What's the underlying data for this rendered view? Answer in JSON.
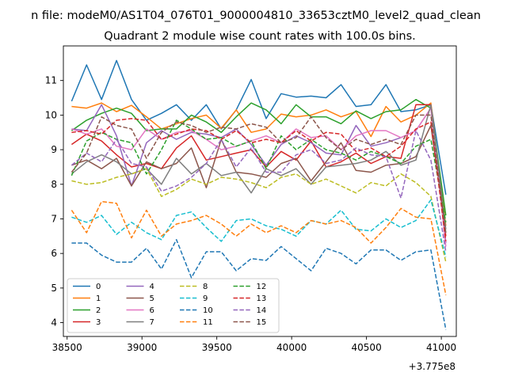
{
  "chart_data": {
    "type": "line",
    "suptitle": "n file: modeM0/AS1T04_076T01_9000004810_33653cztM0_level2_quad_clean",
    "title": "Quadrant 2 module wise count rates with 100.0s bins.",
    "xlabel": "",
    "ylabel": "",
    "x_offset_label": "+3.775e8",
    "xlim": [
      38475,
      41100
    ],
    "ylim": [
      3.6,
      12.0
    ],
    "x_ticks": [
      38500,
      39000,
      39500,
      40000,
      40500,
      41000
    ],
    "y_ticks": [
      4,
      5,
      6,
      7,
      8,
      9,
      10,
      11
    ],
    "x": [
      38530,
      38630,
      38730,
      38830,
      38930,
      39030,
      39130,
      39230,
      39330,
      39430,
      39530,
      39630,
      39730,
      39830,
      39930,
      40030,
      40130,
      40230,
      40330,
      40430,
      40530,
      40630,
      40730,
      40830,
      40930,
      41030
    ],
    "legend": {
      "location": "lower left",
      "columns": 4
    },
    "series": [
      {
        "name": "0",
        "color": "#1f77b4",
        "dash": "solid",
        "values": [
          10.4,
          11.45,
          10.45,
          11.58,
          10.45,
          9.85,
          10.05,
          10.3,
          9.85,
          10.3,
          9.6,
          10.15,
          11.03,
          9.9,
          10.62,
          10.52,
          10.55,
          10.5,
          10.88,
          10.25,
          10.3,
          10.88,
          10.1,
          10.15,
          10.3,
          7.7
        ]
      },
      {
        "name": "1",
        "color": "#ff7f0e",
        "dash": "solid",
        "values": [
          10.25,
          10.2,
          10.35,
          10.1,
          10.28,
          9.95,
          9.6,
          9.75,
          9.9,
          10.0,
          9.62,
          10.15,
          9.5,
          9.6,
          10.03,
          9.95,
          10.0,
          10.15,
          9.95,
          10.1,
          9.38,
          10.25,
          9.8,
          10.0,
          10.35,
          6.8
        ]
      },
      {
        "name": "2",
        "color": "#2ca02c",
        "dash": "solid",
        "values": [
          9.55,
          9.85,
          10.05,
          10.2,
          10.05,
          9.55,
          9.6,
          9.6,
          10.0,
          9.8,
          9.5,
          9.95,
          10.35,
          10.15,
          9.75,
          10.3,
          9.95,
          9.95,
          9.75,
          10.12,
          9.9,
          10.1,
          10.15,
          10.45,
          10.2,
          7.1
        ]
      },
      {
        "name": "3",
        "color": "#d62728",
        "dash": "solid",
        "values": [
          9.15,
          9.45,
          9.25,
          8.85,
          8.5,
          8.6,
          8.45,
          9.05,
          9.4,
          8.7,
          8.8,
          8.9,
          9.0,
          8.5,
          8.95,
          8.7,
          9.25,
          8.5,
          8.65,
          8.9,
          8.6,
          8.8,
          8.75,
          10.3,
          10.3,
          6.5
        ]
      },
      {
        "name": "4",
        "color": "#9467bd",
        "dash": "solid",
        "values": [
          9.6,
          9.55,
          10.3,
          9.4,
          7.95,
          9.2,
          9.55,
          9.3,
          9.5,
          9.45,
          9.35,
          9.6,
          9.15,
          8.55,
          9.15,
          9.4,
          9.2,
          8.9,
          8.85,
          9.7,
          9.1,
          9.2,
          9.35,
          9.55,
          10.2,
          6.3
        ]
      },
      {
        "name": "5",
        "color": "#8c564b",
        "dash": "solid",
        "values": [
          8.55,
          8.7,
          8.45,
          8.75,
          7.95,
          8.65,
          8.45,
          8.6,
          9.05,
          7.9,
          9.3,
          8.35,
          8.3,
          8.2,
          8.6,
          8.75,
          8.1,
          8.65,
          9.2,
          8.4,
          8.35,
          8.55,
          8.6,
          8.8,
          9.7,
          6.6
        ]
      },
      {
        "name": "6",
        "color": "#e377c2",
        "dash": "solid",
        "values": [
          9.6,
          9.45,
          9.6,
          9.1,
          9.0,
          9.6,
          9.3,
          9.5,
          9.55,
          9.3,
          9.0,
          9.1,
          9.25,
          9.4,
          9.2,
          9.6,
          9.35,
          9.4,
          9.0,
          9.4,
          9.55,
          9.55,
          9.35,
          9.55,
          10.2,
          6.2
        ]
      },
      {
        "name": "7",
        "color": "#7f7f7f",
        "dash": "solid",
        "values": [
          8.3,
          8.65,
          8.85,
          8.65,
          8.3,
          8.45,
          8.0,
          8.75,
          8.3,
          8.6,
          8.25,
          8.35,
          7.75,
          8.45,
          8.25,
          8.45,
          8.0,
          8.5,
          8.55,
          8.6,
          8.7,
          8.95,
          8.55,
          8.7,
          10.3,
          6.7
        ]
      },
      {
        "name": "8",
        "color": "#bcbd22",
        "dash": "dashed",
        "values": [
          8.1,
          8.0,
          8.05,
          8.2,
          8.3,
          8.45,
          7.65,
          7.85,
          8.15,
          8.0,
          8.2,
          8.15,
          8.05,
          7.9,
          8.2,
          8.3,
          8.0,
          8.15,
          7.95,
          7.75,
          8.05,
          7.95,
          8.3,
          8.05,
          7.65,
          5.75
        ]
      },
      {
        "name": "9",
        "color": "#17becf",
        "dash": "dashed",
        "values": [
          7.05,
          6.9,
          7.1,
          6.55,
          6.9,
          6.6,
          6.4,
          7.1,
          7.2,
          6.75,
          6.35,
          6.95,
          7.0,
          6.8,
          6.7,
          6.5,
          6.95,
          6.85,
          7.25,
          6.7,
          6.65,
          7.0,
          6.75,
          6.95,
          7.55,
          5.9
        ]
      },
      {
        "name": "10",
        "color": "#1f77b4",
        "dash": "dashed",
        "values": [
          6.3,
          6.3,
          5.95,
          5.75,
          5.75,
          6.15,
          5.55,
          6.4,
          5.3,
          6.05,
          6.05,
          5.5,
          5.85,
          5.8,
          6.2,
          5.85,
          5.5,
          6.15,
          6.0,
          5.7,
          6.1,
          6.1,
          5.8,
          6.05,
          6.1,
          3.8
        ]
      },
      {
        "name": "11",
        "color": "#ff7f0e",
        "dash": "dashed",
        "values": [
          7.25,
          6.6,
          7.5,
          7.45,
          6.45,
          7.25,
          6.5,
          6.85,
          6.95,
          7.1,
          6.85,
          6.5,
          6.85,
          6.6,
          6.8,
          6.6,
          6.95,
          6.85,
          6.95,
          6.75,
          6.3,
          6.75,
          7.3,
          7.05,
          7.0,
          4.8
        ]
      },
      {
        "name": "12",
        "color": "#2ca02c",
        "dash": "dashed",
        "values": [
          8.25,
          9.25,
          9.5,
          9.3,
          9.2,
          8.3,
          9.0,
          9.85,
          9.6,
          9.3,
          9.35,
          9.1,
          9.25,
          8.45,
          9.4,
          9.0,
          9.3,
          9.0,
          8.9,
          8.7,
          8.95,
          8.8,
          8.6,
          9.1,
          9.3,
          6.9
        ]
      },
      {
        "name": "13",
        "color": "#d62728",
        "dash": "dashed",
        "values": [
          9.5,
          9.55,
          9.45,
          9.85,
          9.9,
          9.85,
          9.3,
          9.45,
          9.6,
          9.55,
          9.3,
          9.55,
          9.2,
          9.3,
          9.2,
          9.55,
          9.25,
          9.5,
          9.45,
          8.95,
          9.05,
          8.8,
          9.1,
          9.6,
          9.8,
          6.35
        ]
      },
      {
        "name": "14",
        "color": "#9467bd",
        "dash": "dashed",
        "values": [
          8.55,
          8.9,
          8.65,
          9.3,
          8.6,
          8.5,
          7.8,
          7.95,
          8.2,
          8.6,
          9.3,
          8.5,
          9.05,
          8.35,
          8.35,
          8.85,
          9.0,
          8.6,
          8.7,
          9.05,
          8.85,
          8.8,
          7.6,
          9.55,
          8.7,
          6.05
        ]
      },
      {
        "name": "15",
        "color": "#8c564b",
        "dash": "dashed",
        "values": [
          8.35,
          8.9,
          9.95,
          9.7,
          9.6,
          8.75,
          9.5,
          9.8,
          9.7,
          9.5,
          9.65,
          9.6,
          9.75,
          9.65,
          9.2,
          9.35,
          9.95,
          9.35,
          9.0,
          9.3,
          9.15,
          9.3,
          9.15,
          10.0,
          10.0,
          6.55
        ]
      }
    ]
  }
}
